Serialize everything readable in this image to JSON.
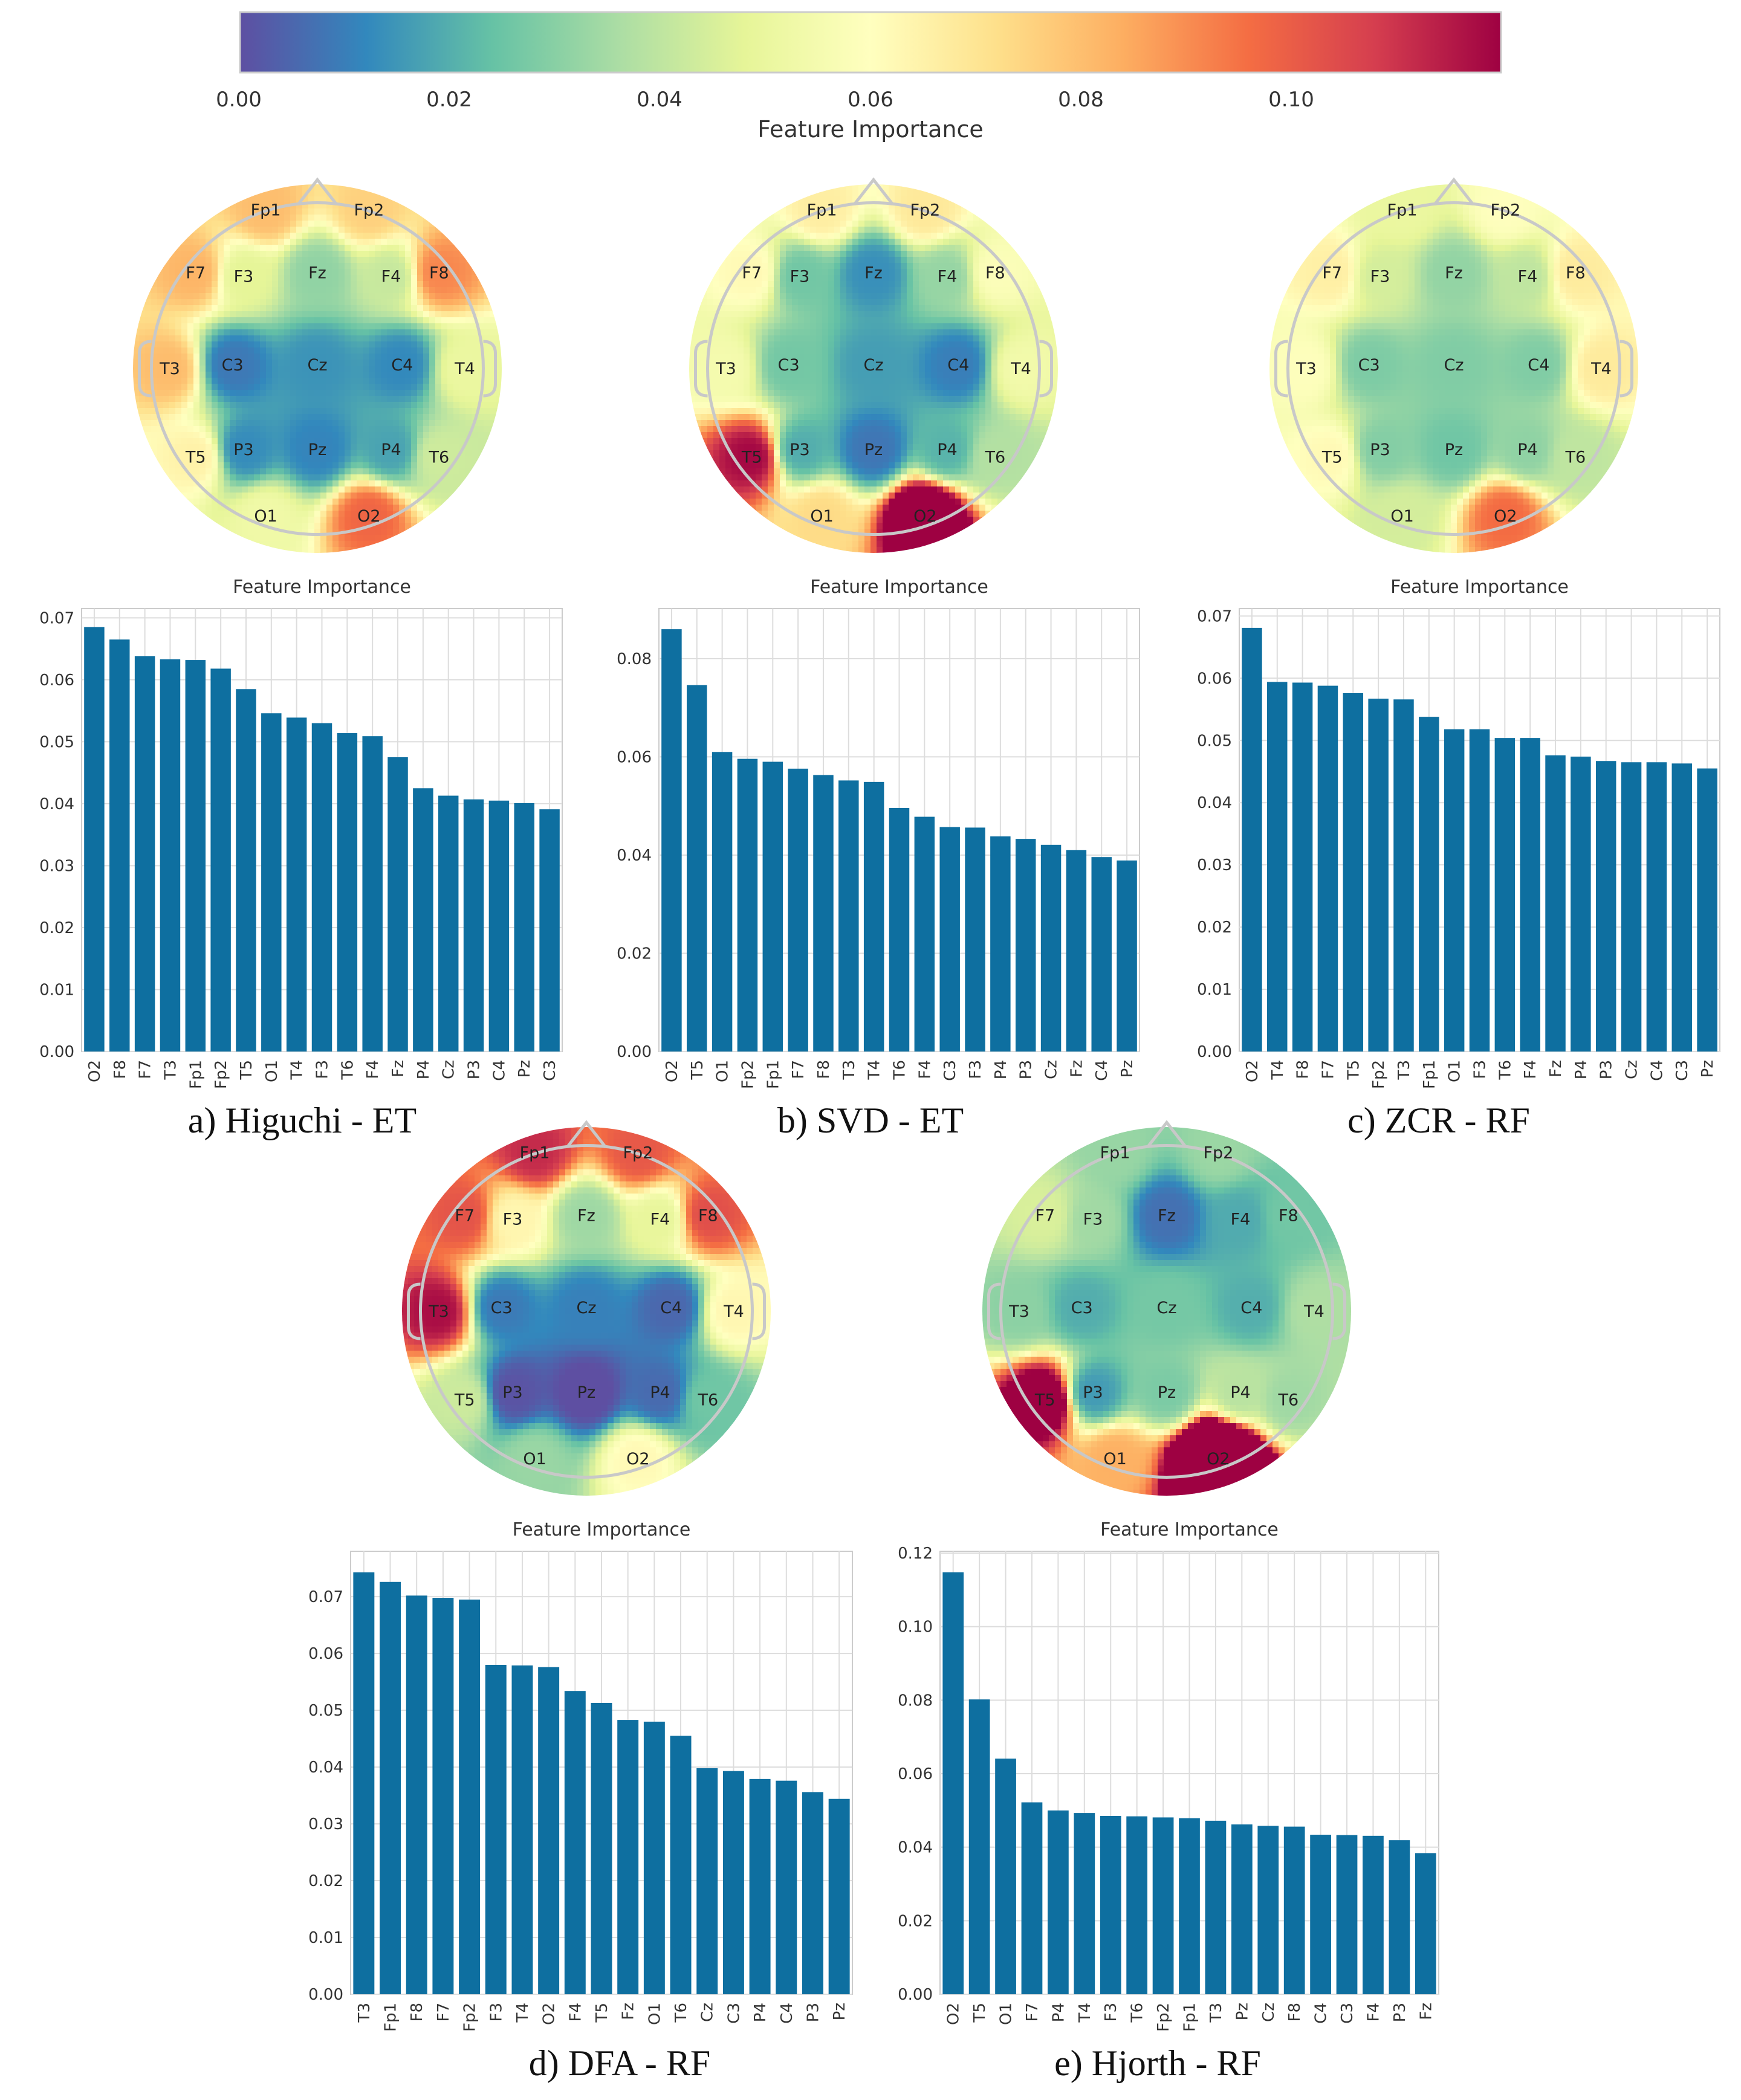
{
  "colorbar": {
    "label": "Feature Importance",
    "ticks": [
      "0.00",
      "0.02",
      "0.04",
      "0.06",
      "0.08",
      "0.10"
    ],
    "range": [
      0,
      0.12
    ],
    "colors": [
      "#5e4fa2",
      "#3288bd",
      "#66c2a5",
      "#abdda4",
      "#e6f598",
      "#ffffbf",
      "#fee08b",
      "#fdae61",
      "#f46d43",
      "#d53e4f",
      "#9e0142"
    ]
  },
  "electrodes": [
    "Fp1",
    "Fp2",
    "F7",
    "F3",
    "Fz",
    "F4",
    "F8",
    "T3",
    "C3",
    "Cz",
    "C4",
    "T4",
    "T5",
    "P3",
    "Pz",
    "P4",
    "T6",
    "O1",
    "O2"
  ],
  "captions": {
    "a": "a) Higuchi - ET",
    "b": "b) SVD - ET",
    "c": "c) ZCR - RF",
    "d": "d) DFA - RF",
    "e": "e) Hjorth - RF"
  },
  "chart_data": [
    {
      "id": "a",
      "type": "bar",
      "title": "Feature Importance",
      "categories": [
        "O2",
        "F8",
        "F7",
        "T3",
        "Fp1",
        "Fp2",
        "T5",
        "O1",
        "T4",
        "F3",
        "T6",
        "F4",
        "Fz",
        "P4",
        "Cz",
        "P3",
        "C4",
        "Pz",
        "C3"
      ],
      "values": [
        0.0685,
        0.0665,
        0.0638,
        0.0633,
        0.0632,
        0.0618,
        0.0585,
        0.0546,
        0.0539,
        0.053,
        0.0514,
        0.0509,
        0.0475,
        0.0425,
        0.0413,
        0.0407,
        0.0405,
        0.0401,
        0.0391
      ],
      "ylim": [
        0,
        0.0715
      ],
      "yticks": [
        "0.00",
        "0.01",
        "0.02",
        "0.03",
        "0.04",
        "0.05",
        "0.06",
        "0.07"
      ]
    },
    {
      "id": "b",
      "type": "bar",
      "title": "Feature Importance",
      "categories": [
        "O2",
        "T5",
        "O1",
        "Fp2",
        "Fp1",
        "F7",
        "F8",
        "T3",
        "T4",
        "T6",
        "F4",
        "C3",
        "F3",
        "P4",
        "P3",
        "Cz",
        "Fz",
        "C4",
        "Pz"
      ],
      "values": [
        0.086,
        0.0746,
        0.061,
        0.0596,
        0.059,
        0.0576,
        0.0563,
        0.0552,
        0.0549,
        0.0496,
        0.0478,
        0.0457,
        0.0456,
        0.0438,
        0.0433,
        0.0421,
        0.041,
        0.0396,
        0.0389
      ],
      "ylim": [
        0,
        0.0902
      ],
      "yticks": [
        "0.00",
        "0.02",
        "0.04",
        "0.06",
        "0.08"
      ]
    },
    {
      "id": "c",
      "type": "bar",
      "title": "Feature Importance",
      "categories": [
        "O2",
        "T4",
        "F8",
        "F7",
        "T5",
        "Fp2",
        "T3",
        "Fp1",
        "O1",
        "F3",
        "T6",
        "F4",
        "Fz",
        "P4",
        "P3",
        "Cz",
        "C4",
        "C3",
        "Pz"
      ],
      "values": [
        0.0681,
        0.0594,
        0.0593,
        0.0588,
        0.0576,
        0.0567,
        0.0566,
        0.0538,
        0.0518,
        0.0518,
        0.0504,
        0.0504,
        0.0476,
        0.0474,
        0.0467,
        0.0465,
        0.0465,
        0.0463,
        0.0455
      ],
      "ylim": [
        0,
        0.0712
      ],
      "yticks": [
        "0.00",
        "0.01",
        "0.02",
        "0.03",
        "0.04",
        "0.05",
        "0.06",
        "0.07"
      ]
    },
    {
      "id": "d",
      "type": "bar",
      "title": "Feature Importance",
      "categories": [
        "T3",
        "Fp1",
        "F8",
        "F7",
        "Fp2",
        "F3",
        "T4",
        "O2",
        "F4",
        "T5",
        "Fz",
        "O1",
        "T6",
        "Cz",
        "C3",
        "P4",
        "C4",
        "P3",
        "Pz"
      ],
      "values": [
        0.0743,
        0.0726,
        0.0702,
        0.0698,
        0.0695,
        0.058,
        0.0579,
        0.0576,
        0.0534,
        0.0513,
        0.0483,
        0.048,
        0.0455,
        0.0398,
        0.0393,
        0.0379,
        0.0376,
        0.0356,
        0.0344
      ],
      "ylim": [
        0,
        0.078
      ],
      "yticks": [
        "0.00",
        "0.01",
        "0.02",
        "0.03",
        "0.04",
        "0.05",
        "0.06",
        "0.07"
      ]
    },
    {
      "id": "e",
      "type": "bar",
      "title": "Feature Importance",
      "categories": [
        "O2",
        "T5",
        "O1",
        "F7",
        "P4",
        "T4",
        "F3",
        "T6",
        "Fp2",
        "Fp1",
        "T3",
        "Pz",
        "Cz",
        "F8",
        "C4",
        "C3",
        "F4",
        "P3",
        "Fz"
      ],
      "values": [
        0.1148,
        0.0802,
        0.0641,
        0.0522,
        0.05,
        0.0493,
        0.0485,
        0.0484,
        0.0481,
        0.0479,
        0.0472,
        0.0462,
        0.0458,
        0.0456,
        0.0434,
        0.0433,
        0.0431,
        0.0419,
        0.0384
      ],
      "ylim": [
        0,
        0.1205
      ],
      "yticks": [
        "0.00",
        "0.02",
        "0.04",
        "0.06",
        "0.08",
        "0.10",
        "0.12"
      ]
    }
  ]
}
